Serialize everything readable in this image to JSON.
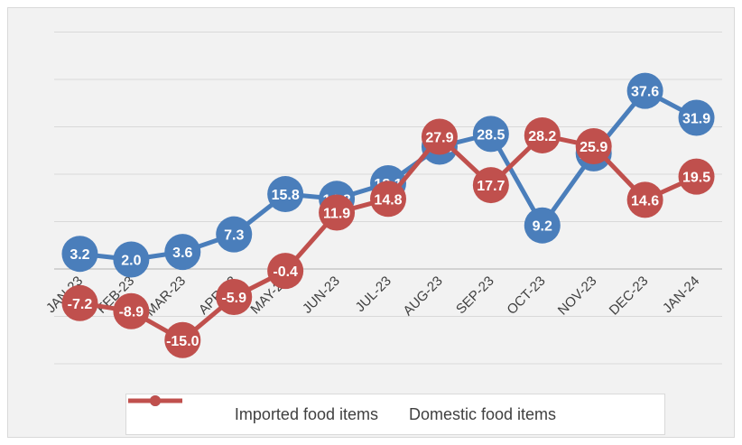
{
  "chart_data": {
    "type": "line",
    "categories": [
      "JAN-23",
      "FEB-23",
      "MAR-23",
      "APR-23",
      "MAY-23",
      "JUN-23",
      "JUL-23",
      "AUG-23",
      "SEP-23",
      "OCT-23",
      "NOV-23",
      "DEC-23",
      "JAN-24"
    ],
    "series": [
      {
        "name": "Imported food items",
        "color": "#4a7ebb",
        "values": [
          3.2,
          2.0,
          3.6,
          7.3,
          15.8,
          14.8,
          18.1,
          25.8,
          28.5,
          9.2,
          24.4,
          37.6,
          31.9
        ],
        "labels": [
          "3.2",
          "2.0",
          "3.6",
          "7.3",
          "15.8",
          "14.8",
          "18.1",
          "25.8",
          "28.5",
          "9.2",
          "24.4",
          "37.6",
          "31.9"
        ]
      },
      {
        "name": "Domestic food items",
        "color": "#c0504d",
        "values": [
          -7.2,
          -8.9,
          -15.0,
          -5.9,
          -0.4,
          11.9,
          14.8,
          27.9,
          17.7,
          28.2,
          25.9,
          14.6,
          19.5
        ],
        "labels": [
          "-7.2",
          "-8.9",
          "-15.0",
          "-5.9",
          "-0.4",
          "11.9",
          "14.8",
          "27.9",
          "17.7",
          "28.2",
          "25.9",
          "14.6",
          "19.5"
        ]
      }
    ],
    "ylim": [
      -20,
      50
    ],
    "grid": true,
    "legend_position": "bottom"
  }
}
